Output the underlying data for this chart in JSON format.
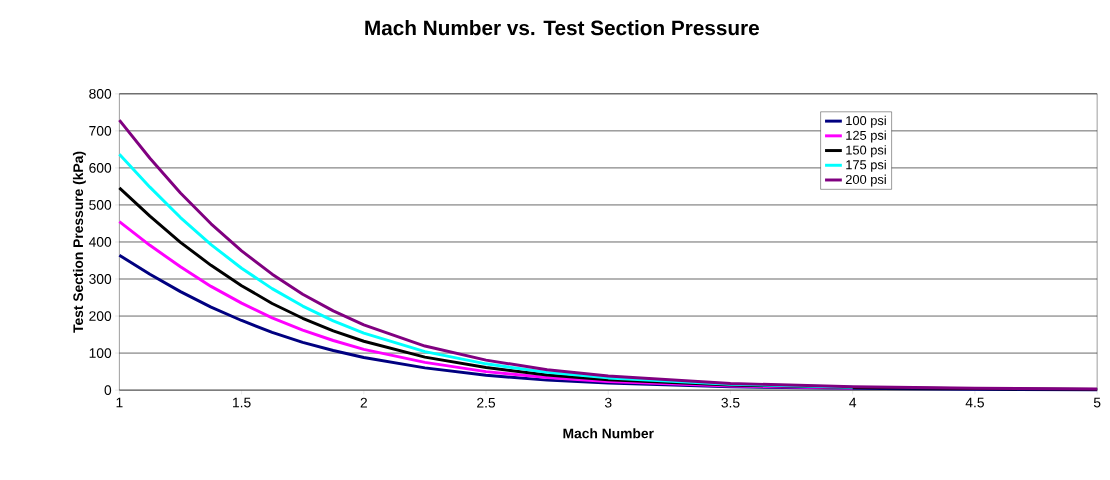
{
  "chart_data": {
    "type": "line",
    "title": "Mach Number vs. Test Section Pressure",
    "xlabel": "Mach Number",
    "ylabel": "Test Section Pressure (kPa)",
    "x": [
      1,
      1.125,
      1.25,
      1.375,
      1.5,
      1.625,
      1.75,
      1.875,
      2,
      2.25,
      2.5,
      2.75,
      3,
      3.5,
      4,
      4.5,
      5
    ],
    "series": [
      {
        "name": "100 psi",
        "color": "#000080",
        "values": [
          364,
          313,
          266,
          224,
          188,
          156,
          129,
          107,
          88,
          60,
          40,
          27,
          19,
          9,
          5,
          2,
          1
        ]
      },
      {
        "name": "125 psi",
        "color": "#ff00ff",
        "values": [
          455,
          391,
          333,
          280,
          235,
          195,
          162,
          134,
          110,
          75,
          50,
          34,
          23,
          11,
          6,
          null,
          null
        ]
      },
      {
        "name": "150 psi",
        "color": "#000000",
        "values": [
          546,
          470,
          399,
          337,
          282,
          234,
          194,
          160,
          132,
          89,
          61,
          41,
          28,
          14,
          7,
          4,
          2
        ]
      },
      {
        "name": "175 psi",
        "color": "#00ffff",
        "values": [
          637,
          548,
          466,
          393,
          329,
          274,
          227,
          187,
          154,
          104,
          71,
          48,
          33,
          16,
          8,
          null,
          null
        ]
      },
      {
        "name": "200 psi",
        "color": "#800080",
        "values": [
          729,
          626,
          532,
          449,
          376,
          313,
          259,
          214,
          176,
          119,
          81,
          55,
          38,
          18,
          9,
          5,
          3
        ]
      }
    ],
    "xlim": [
      1,
      5
    ],
    "ylim": [
      0,
      800
    ],
    "xticks": [
      1,
      1.5,
      2,
      2.5,
      3,
      3.5,
      4,
      4.5,
      5
    ],
    "yticks": [
      0,
      100,
      200,
      300,
      400,
      500,
      600,
      700,
      800
    ],
    "grid": "y",
    "legend": "top right",
    "marker": "none",
    "line_style": "solid"
  }
}
